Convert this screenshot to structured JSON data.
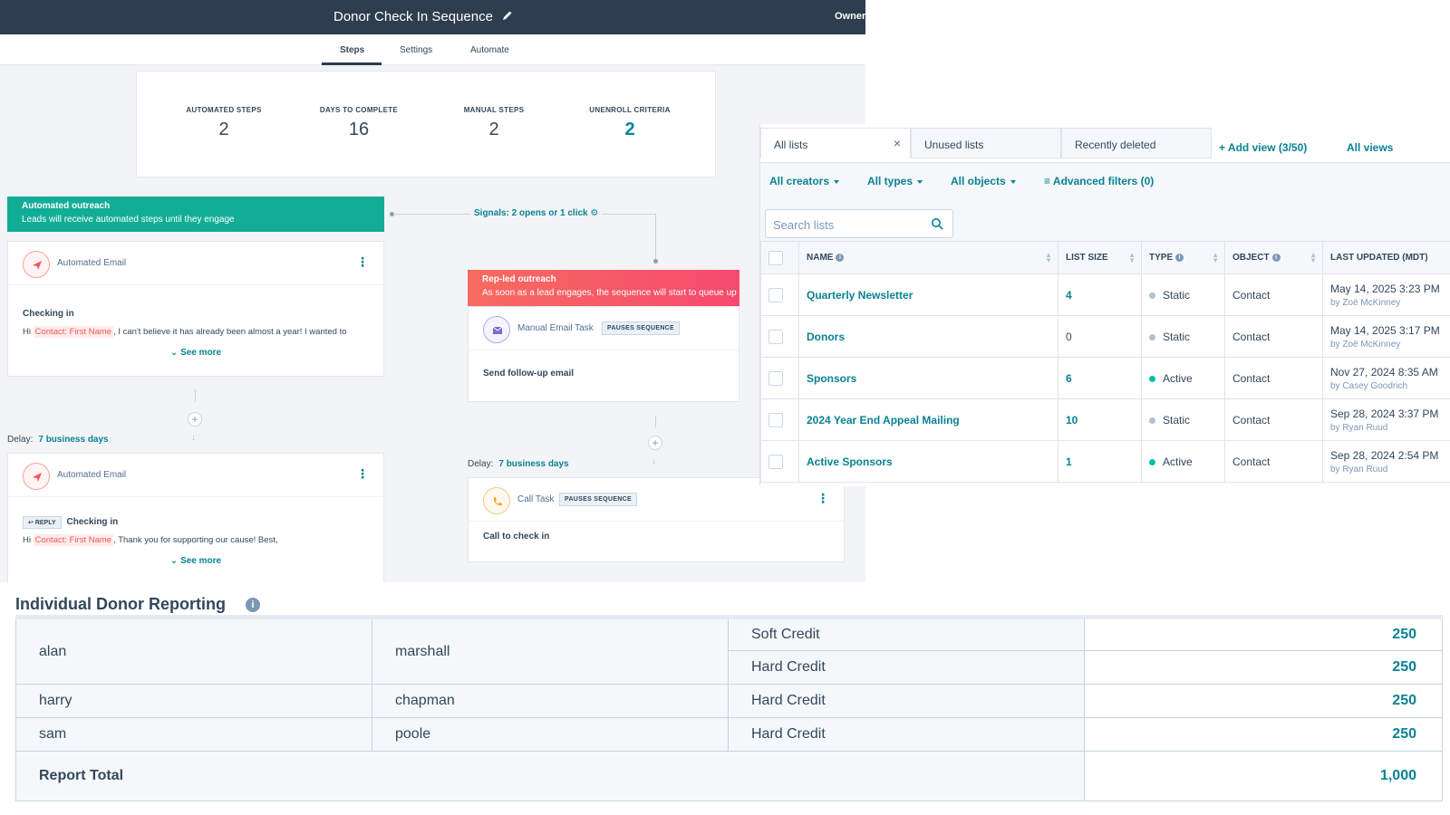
{
  "sequence": {
    "title": "Donor Check In Sequence",
    "owner_label": "Owner:",
    "tabs": [
      "Steps",
      "Settings",
      "Automate"
    ],
    "stats": [
      {
        "label": "AUTOMATED STEPS",
        "value": "2"
      },
      {
        "label": "DAYS TO COMPLETE",
        "value": "16"
      },
      {
        "label": "MANUAL STEPS",
        "value": "2"
      },
      {
        "label": "UNENROLL CRITERIA",
        "value": "2"
      }
    ],
    "automated": {
      "title": "Automated outreach",
      "subtitle": "Leads will receive automated steps until they engage"
    },
    "signals": "Signals: 2 opens or 1 click",
    "rep": {
      "title": "Rep-led outreach",
      "subtitle": "As soon as a lead engages, the sequence will start to queue up"
    },
    "email1": {
      "type": "Automated Email",
      "subject": "Checking in",
      "body_pre": "Hi ",
      "token": "Contact: First Name",
      "body_post": ", I can't believe it has already been almost a year! I wanted to",
      "see_more": "See more"
    },
    "email2": {
      "type": "Automated Email",
      "reply_badge": "REPLY",
      "subject": "Checking in",
      "body_pre": "Hi ",
      "token": "Contact: First Name",
      "body_post": ", Thank you for supporting our cause! Best,",
      "see_more": "See more"
    },
    "delay_label": "Delay:",
    "delay_left": "7 business days",
    "delay_right": "7 business days",
    "manual_task": {
      "type": "Manual Email Task",
      "badge": "PAUSES SEQUENCE",
      "subject": "Send follow-up email"
    },
    "call_task": {
      "type": "Call Task",
      "badge": "PAUSES SEQUENCE",
      "subject": "Call to check in"
    }
  },
  "lists": {
    "view_tabs": [
      "All lists",
      "Unused lists",
      "Recently deleted"
    ],
    "add_view": "Add view (3/50)",
    "all_views": "All views",
    "filters": [
      "All creators",
      "All types",
      "All objects"
    ],
    "advanced_filters": "Advanced filters (0)",
    "search_placeholder": "Search lists",
    "columns": [
      "NAME",
      "LIST SIZE",
      "TYPE",
      "OBJECT",
      "LAST UPDATED (MDT)"
    ],
    "rows": [
      {
        "name": "Quarterly Newsletter",
        "size": "4",
        "type": "Static",
        "object": "Contact",
        "updated": "May 14, 2025 3:23 PM",
        "by": "by Zoë McKinney"
      },
      {
        "name": "Donors",
        "size": "0",
        "type": "Static",
        "object": "Contact",
        "updated": "May 14, 2025 3:17 PM",
        "by": "by Zoë McKinney"
      },
      {
        "name": "Sponsors",
        "size": "6",
        "type": "Active",
        "object": "Contact",
        "updated": "Nov 27, 2024 8:35 AM",
        "by": "by Casey Goodrich"
      },
      {
        "name": "2024 Year End Appeal Mailing",
        "size": "10",
        "type": "Static",
        "object": "Contact",
        "updated": "Sep 28, 2024 3:37 PM",
        "by": "by Ryan Ruud"
      },
      {
        "name": "Active Sponsors",
        "size": "1",
        "type": "Active",
        "object": "Contact",
        "updated": "Sep 28, 2024 2:54 PM",
        "by": "by Ryan Ruud"
      }
    ],
    "colors": {
      "static": "#b0c1d4",
      "active": "#00bda5"
    }
  },
  "report": {
    "title": "Individual Donor Reporting",
    "rows": [
      {
        "first": "alan",
        "last": "marshall",
        "credits": [
          {
            "kind": "Soft Credit",
            "amount": "250"
          },
          {
            "kind": "Hard Credit",
            "amount": "250"
          }
        ]
      },
      {
        "first": "harry",
        "last": "chapman",
        "credits": [
          {
            "kind": "Hard Credit",
            "amount": "250"
          }
        ]
      },
      {
        "first": "sam",
        "last": "poole",
        "credits": [
          {
            "kind": "Hard Credit",
            "amount": "250"
          }
        ]
      }
    ],
    "total_label": "Report Total",
    "total_value": "1,000"
  }
}
